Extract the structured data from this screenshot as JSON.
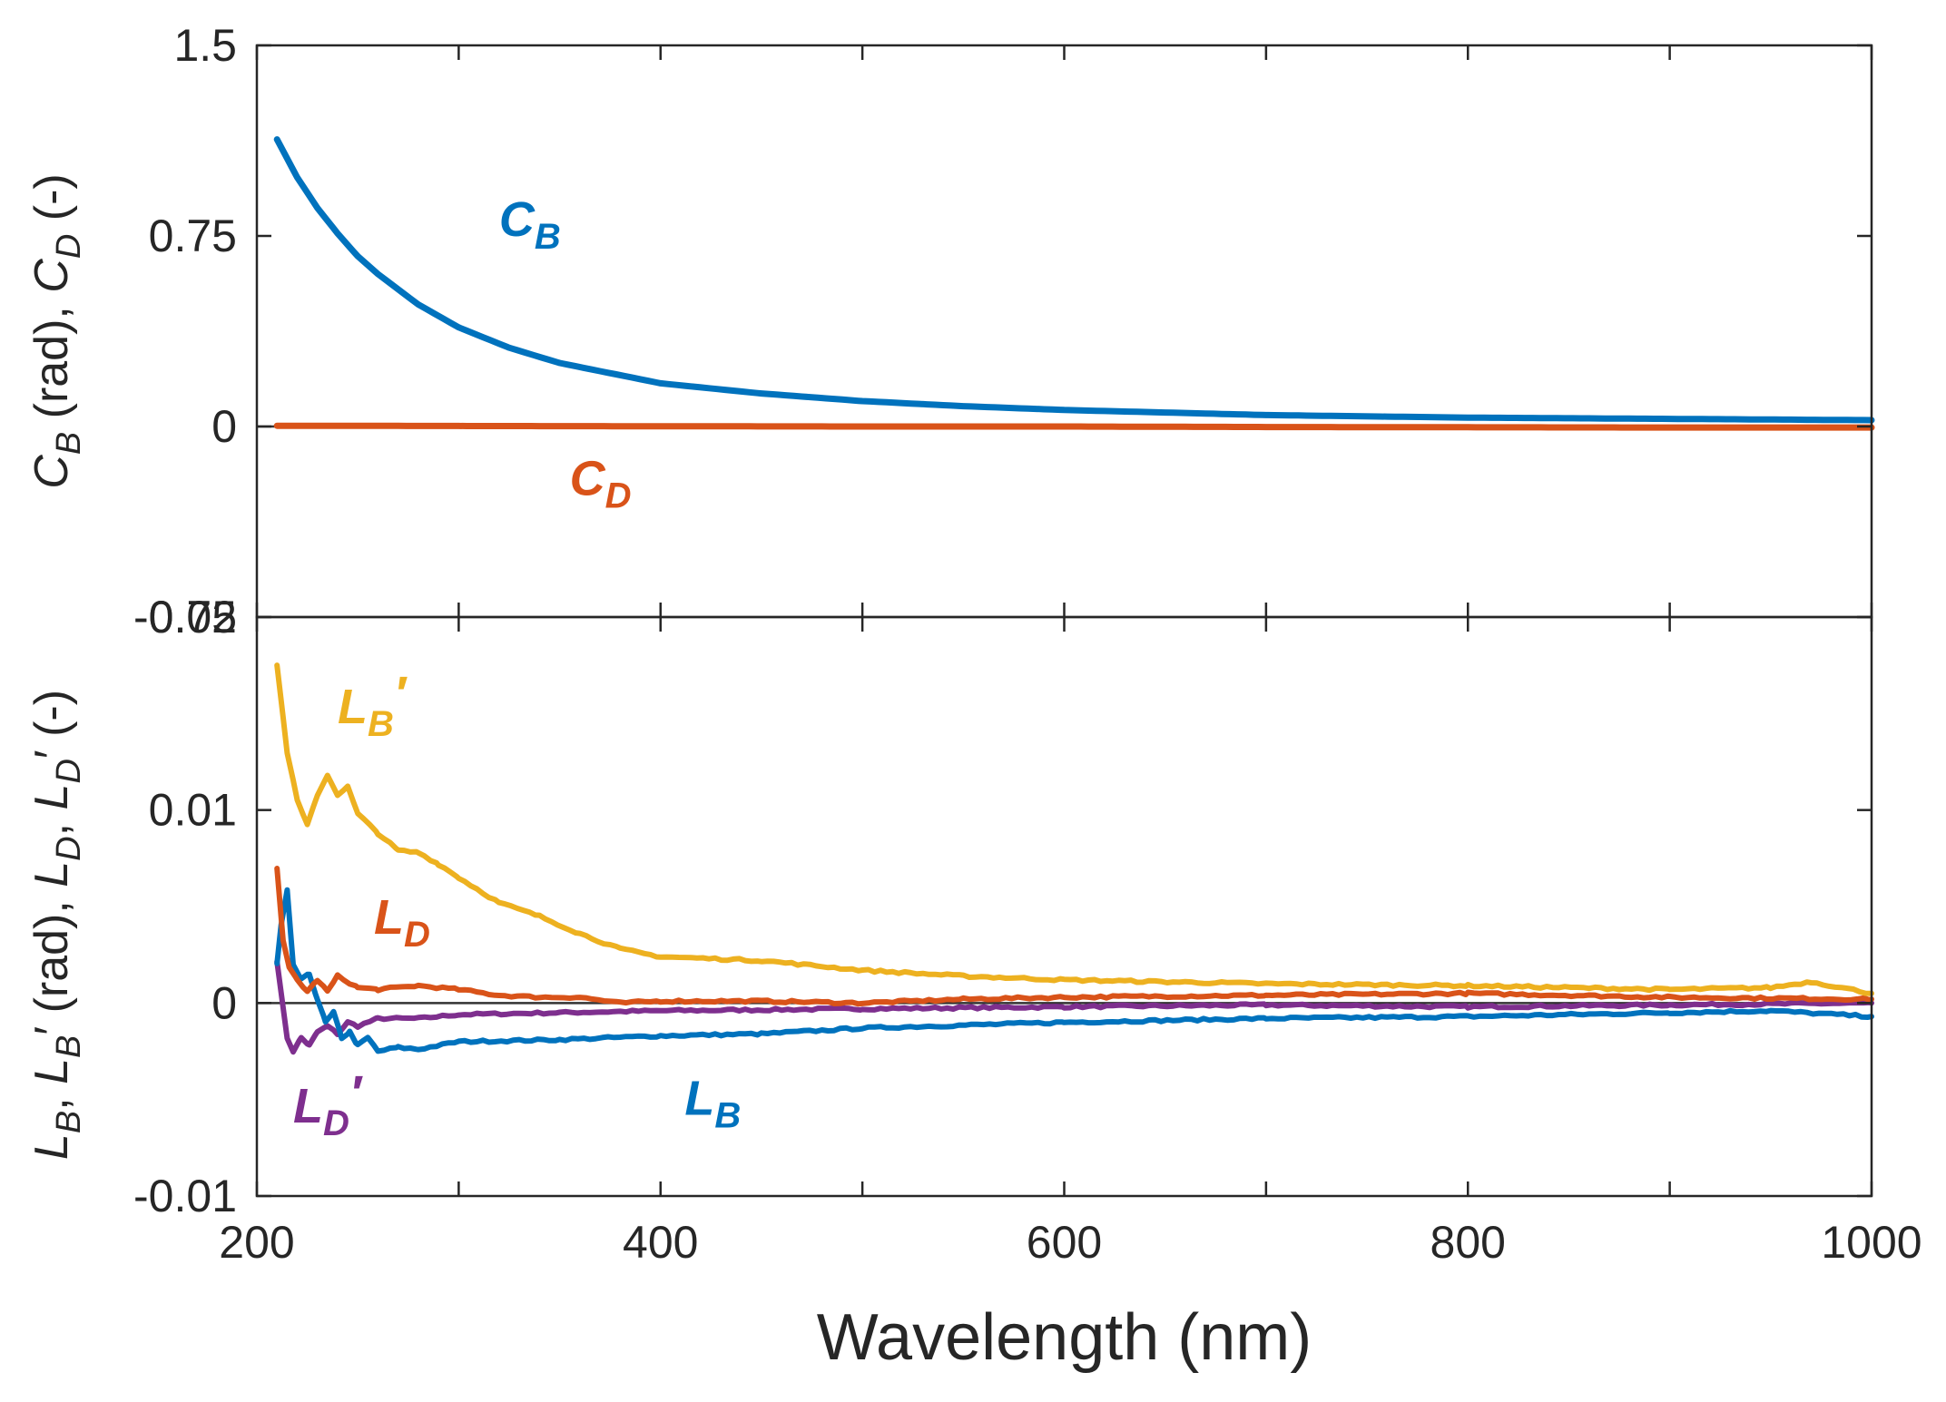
{
  "chart_data": [
    {
      "type": "line",
      "panel": "top",
      "title": "",
      "ylabel": "C_B (rad), C_D (-)",
      "ylabel_parts": [
        "C",
        "B",
        " (rad), ",
        "C",
        "D",
        " (-)"
      ],
      "xlim": [
        200,
        1000
      ],
      "ylim": [
        -0.75,
        1.5
      ],
      "y_ticks": [
        -0.75,
        0,
        0.75,
        1.5
      ],
      "y_tick_labels": [
        "-0.75",
        "0",
        "0.75",
        "1.5"
      ],
      "grid": false,
      "zero_line": true,
      "series": [
        {
          "name": "C_B",
          "label_main": "C",
          "label_sub": "B",
          "color": "#0072BD",
          "x": [
            210,
            220,
            230,
            240,
            250,
            260,
            280,
            300,
            325,
            350,
            400,
            450,
            500,
            550,
            600,
            650,
            700,
            800,
            900,
            1000
          ],
          "y": [
            1.13,
            0.98,
            0.86,
            0.76,
            0.67,
            0.6,
            0.48,
            0.39,
            0.31,
            0.25,
            0.17,
            0.13,
            0.1,
            0.08,
            0.065,
            0.055,
            0.045,
            0.035,
            0.03,
            0.025
          ]
        },
        {
          "name": "C_D",
          "label_main": "C",
          "label_sub": "D",
          "color": "#D95319",
          "x": [
            210,
            300,
            400,
            500,
            600,
            700,
            800,
            900,
            1000
          ],
          "y": [
            0.003,
            0.002,
            0.001,
            0.0,
            0.0,
            -0.002,
            -0.003,
            -0.004,
            -0.004
          ]
        }
      ]
    },
    {
      "type": "line",
      "panel": "bottom",
      "title": "",
      "xlabel": "Wavelength (nm)",
      "ylabel": "L_B, L_B′ (rad), L_D, L_D′ (-)",
      "ylabel_parts": [
        "L",
        "B",
        ", ",
        "L",
        "B",
        "′ (rad), ",
        "L",
        "D",
        ", ",
        "L",
        "D",
        "′ (-)"
      ],
      "xlim": [
        200,
        1000
      ],
      "ylim": [
        -0.01,
        0.02
      ],
      "x_ticks": [
        200,
        400,
        600,
        800,
        1000
      ],
      "x_tick_labels": [
        "200",
        "400",
        "600",
        "800",
        "1000"
      ],
      "y_ticks": [
        -0.01,
        0,
        0.01,
        0.02
      ],
      "y_tick_labels": [
        "-0.01",
        "0",
        "0.01",
        "0.02"
      ],
      "grid": false,
      "zero_line": true,
      "series": [
        {
          "name": "L_B′",
          "label_main": "L",
          "label_sub": "B",
          "label_prime": "′",
          "color": "#EDB120",
          "x": [
            210,
            215,
            220,
            225,
            230,
            235,
            240,
            245,
            250,
            260,
            270,
            280,
            290,
            300,
            320,
            340,
            360,
            380,
            400,
            450,
            500,
            550,
            600,
            700,
            800,
            900,
            950,
            970,
            1000
          ],
          "y": [
            0.0175,
            0.013,
            0.0105,
            0.0092,
            0.0108,
            0.0118,
            0.0108,
            0.0112,
            0.0098,
            0.0088,
            0.0079,
            0.0078,
            0.0072,
            0.0065,
            0.0052,
            0.0045,
            0.0036,
            0.0028,
            0.0024,
            0.0022,
            0.0017,
            0.0014,
            0.0012,
            0.001,
            0.0009,
            0.0007,
            0.0008,
            0.0011,
            0.0005
          ]
        },
        {
          "name": "L_D",
          "label_main": "L",
          "label_sub": "D",
          "label_prime": "",
          "color": "#D95319",
          "x": [
            210,
            213,
            216,
            220,
            225,
            230,
            235,
            240,
            250,
            260,
            280,
            300,
            320,
            340,
            360,
            380,
            400,
            450,
            500,
            550,
            600,
            700,
            800,
            900,
            1000
          ],
          "y": [
            0.007,
            0.0032,
            0.0018,
            0.0012,
            0.0006,
            0.0012,
            0.0006,
            0.0014,
            0.0008,
            0.0007,
            0.0009,
            0.0007,
            0.0004,
            0.0003,
            0.0003,
            0.0,
            0.0001,
            0.0001,
            0.0,
            0.0002,
            0.0003,
            0.0004,
            0.0005,
            0.0003,
            0.0002
          ]
        },
        {
          "name": "L_B",
          "label_main": "L",
          "label_sub": "B",
          "label_prime": "",
          "color": "#0072BD",
          "x": [
            210,
            212,
            215,
            218,
            222,
            226,
            230,
            234,
            238,
            242,
            246,
            250,
            255,
            260,
            270,
            280,
            300,
            350,
            400,
            450,
            500,
            600,
            700,
            800,
            900,
            950,
            1000
          ],
          "y": [
            0.002,
            0.004,
            0.0058,
            0.002,
            0.0012,
            0.0015,
            0.0002,
            -0.001,
            -0.0005,
            -0.0018,
            -0.0015,
            -0.0022,
            -0.0018,
            -0.0025,
            -0.0023,
            -0.0024,
            -0.002,
            -0.0019,
            -0.0017,
            -0.0016,
            -0.0013,
            -0.001,
            -0.0008,
            -0.0007,
            -0.0005,
            -0.0004,
            -0.0007
          ]
        },
        {
          "name": "L_D′",
          "label_main": "L",
          "label_sub": "D",
          "label_prime": "′",
          "color": "#7E2F8E",
          "x": [
            210,
            212,
            215,
            218,
            222,
            226,
            230,
            235,
            240,
            245,
            250,
            260,
            280,
            300,
            350,
            400,
            500,
            600,
            700,
            800,
            900,
            1000
          ],
          "y": [
            0.0022,
            0.0005,
            -0.0018,
            -0.0025,
            -0.0018,
            -0.0022,
            -0.0015,
            -0.0012,
            -0.0016,
            -0.001,
            -0.0012,
            -0.0008,
            -0.0008,
            -0.0006,
            -0.0005,
            -0.0004,
            -0.0003,
            -0.0002,
            -0.0001,
            -0.0002,
            -0.0001,
            0.0
          ]
        }
      ]
    }
  ]
}
